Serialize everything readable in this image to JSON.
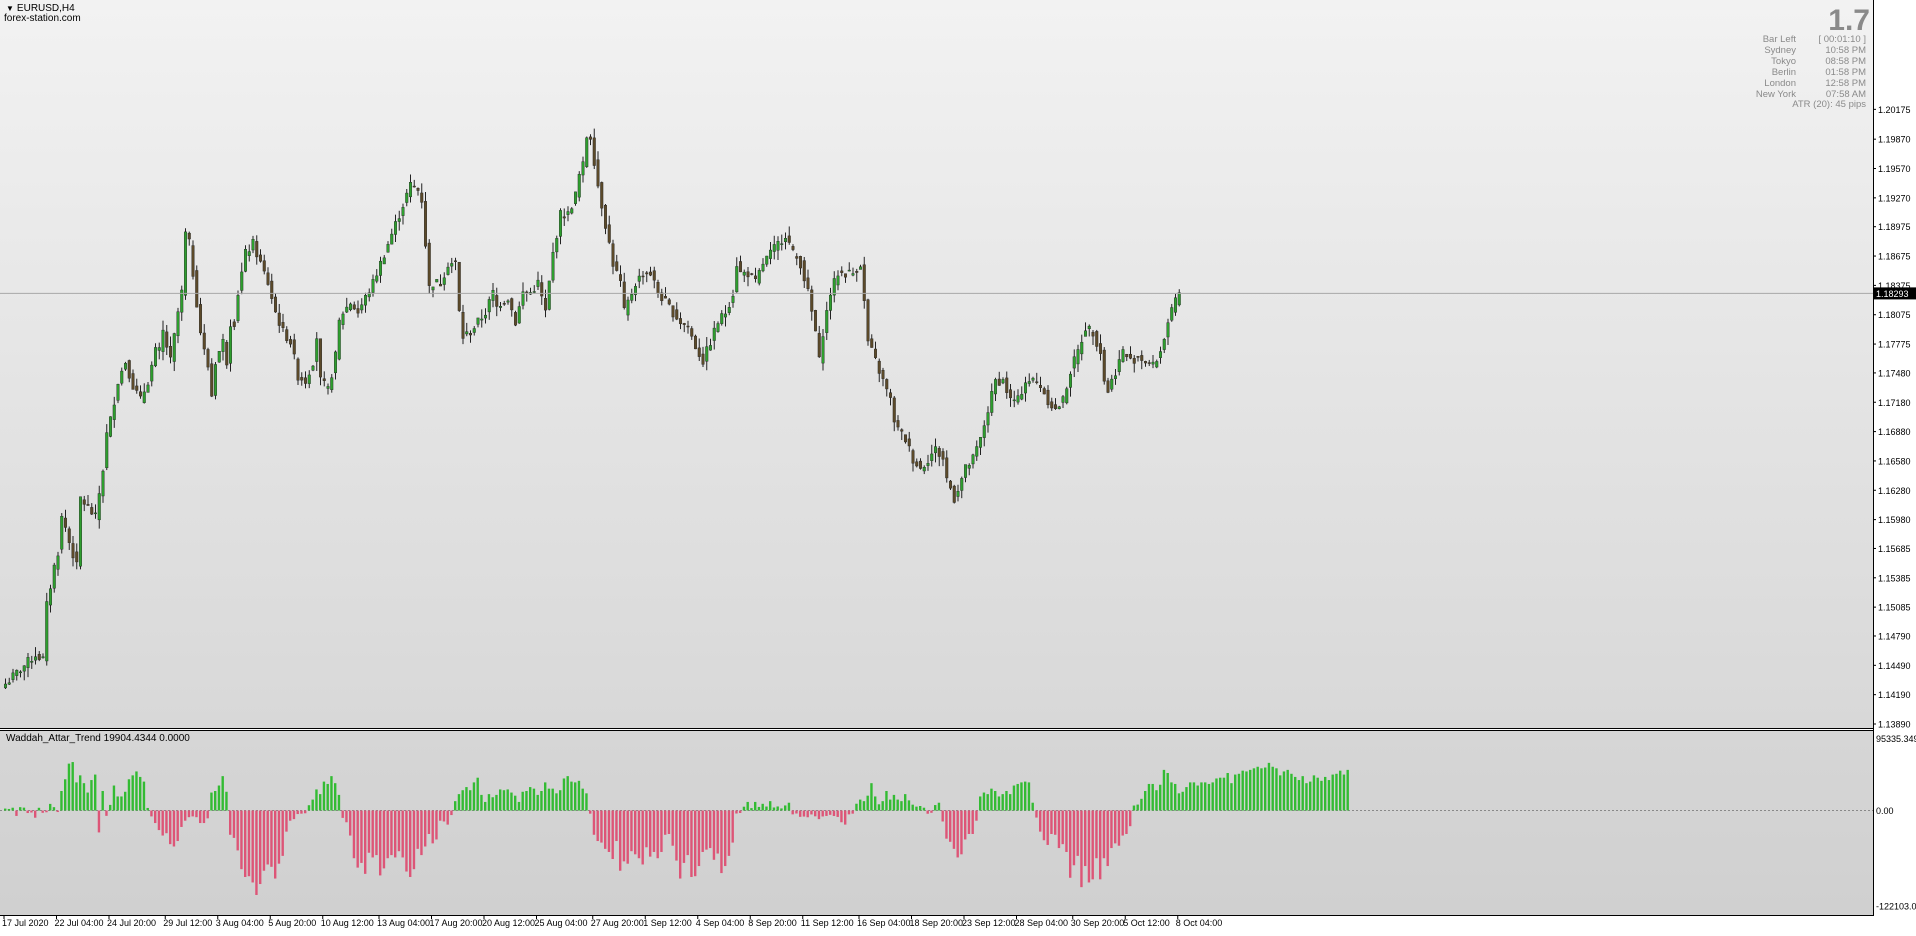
{
  "window": {
    "symbol": "EURUSD,H4",
    "broker": "forex-station.com"
  },
  "info_panel": {
    "spread": "1.7",
    "rows": [
      {
        "name": "Bar Left",
        "value": "[ 00:01:10 ]"
      },
      {
        "name": "Sydney",
        "value": "10:58 PM"
      },
      {
        "name": "Tokyo",
        "value": "08:58 PM"
      },
      {
        "name": "Berlin",
        "value": "01:58 PM"
      },
      {
        "name": "London",
        "value": "12:58 PM"
      },
      {
        "name": "New York",
        "value": "07:58 AM"
      }
    ],
    "atr": "ATR (20): 45 pips"
  },
  "indicator": {
    "label": "Waddah_Attar_Trend 19904.4344 0.0000"
  },
  "colors": {
    "background_top": "#f2f2f2",
    "background_bottom": "#d6d6d6",
    "candle_bull": "#2e9e2e",
    "candle_bear": "#5c4a2a",
    "hist_positive": "#33bb33",
    "hist_negative": "#dd5577",
    "price_line": "#a8a8a8",
    "current_price_box": "#000000"
  },
  "chart_data": [
    {
      "type": "candlestick",
      "symbol": "EURUSD",
      "timeframe": "H4",
      "current_price": "1.18293",
      "y_tick_labels": [
        "1.20175",
        "1.19870",
        "1.19570",
        "1.19270",
        "1.18975",
        "1.18675",
        "1.18375",
        "1.18075",
        "1.17775",
        "1.17480",
        "1.17180",
        "1.16880",
        "1.16580",
        "1.16280",
        "1.15980",
        "1.15685",
        "1.15385",
        "1.15085",
        "1.14790",
        "1.14490",
        "1.14190",
        "1.13890"
      ],
      "ylim": [
        1.1389,
        1.2115
      ],
      "x_tick_labels": [
        "17 Jul 2020",
        "22 Jul 04:00",
        "24 Jul 20:00",
        "29 Jul 12:00",
        "3 Aug 04:00",
        "5 Aug 20:00",
        "10 Aug 12:00",
        "13 Aug 04:00",
        "17 Aug 20:00",
        "20 Aug 12:00",
        "25 Aug 04:00",
        "27 Aug 20:00",
        "1 Sep 12:00",
        "4 Sep 04:00",
        "8 Sep 20:00",
        "11 Sep 12:00",
        "16 Sep 04:00",
        "18 Sep 20:00",
        "23 Sep 12:00",
        "28 Sep 04:00",
        "30 Sep 20:00",
        "5 Oct 12:00",
        "8 Oct 04:00"
      ],
      "close_series_by_bar_index": [
        [
          0,
          1.143
        ],
        [
          4,
          1.1445
        ],
        [
          8,
          1.146
        ],
        [
          10,
          1.1455
        ],
        [
          11,
          1.151
        ],
        [
          13,
          1.155
        ],
        [
          14,
          1.1565
        ],
        [
          15,
          1.16
        ],
        [
          16,
          1.159
        ],
        [
          17,
          1.1575
        ],
        [
          19,
          1.155
        ],
        [
          20,
          1.162
        ],
        [
          22,
          1.161
        ],
        [
          24,
          1.16
        ],
        [
          26,
          1.165
        ],
        [
          27,
          1.1685
        ],
        [
          28,
          1.17
        ],
        [
          29,
          1.172
        ],
        [
          30,
          1.174
        ],
        [
          32,
          1.176
        ],
        [
          34,
          1.1735
        ],
        [
          36,
          1.172
        ],
        [
          38,
          1.174
        ],
        [
          40,
          1.177
        ],
        [
          41,
          1.177
        ],
        [
          42,
          1.179
        ],
        [
          44,
          1.176
        ],
        [
          46,
          1.181
        ],
        [
          47,
          1.183
        ],
        [
          48,
          1.189
        ],
        [
          49,
          1.188
        ],
        [
          50,
          1.185
        ],
        [
          52,
          1.179
        ],
        [
          53,
          1.177
        ],
        [
          54,
          1.1755
        ],
        [
          55,
          1.1725
        ],
        [
          56,
          1.176
        ],
        [
          57,
          1.177
        ],
        [
          58,
          1.178
        ],
        [
          59,
          1.176
        ],
        [
          60,
          1.18
        ],
        [
          61,
          1.18
        ],
        [
          62,
          1.183
        ],
        [
          64,
          1.187
        ],
        [
          66,
          1.188
        ],
        [
          68,
          1.186
        ],
        [
          70,
          1.184
        ],
        [
          71,
          1.1825
        ],
        [
          72,
          1.181
        ],
        [
          74,
          1.179
        ],
        [
          76,
          1.178
        ],
        [
          78,
          1.1745
        ],
        [
          80,
          1.174
        ],
        [
          82,
          1.176
        ],
        [
          83,
          1.1785
        ],
        [
          84,
          1.174
        ],
        [
          86,
          1.173
        ],
        [
          88,
          1.1765
        ],
        [
          89,
          1.18
        ],
        [
          90,
          1.181
        ],
        [
          92,
          1.182
        ],
        [
          94,
          1.181
        ],
        [
          96,
          1.1825
        ],
        [
          98,
          1.184
        ],
        [
          100,
          1.186
        ],
        [
          102,
          1.188
        ],
        [
          104,
          1.19
        ],
        [
          106,
          1.192
        ],
        [
          108,
          1.194
        ],
        [
          110,
          1.1935
        ],
        [
          111,
          1.1925
        ],
        [
          112,
          1.188
        ],
        [
          113,
          1.1835
        ],
        [
          114,
          1.184
        ],
        [
          116,
          1.184
        ],
        [
          118,
          1.186
        ],
        [
          120,
          1.186
        ],
        [
          121,
          1.181
        ],
        [
          122,
          1.1785
        ],
        [
          124,
          1.179
        ],
        [
          126,
          1.18
        ],
        [
          128,
          1.181
        ],
        [
          130,
          1.183
        ],
        [
          131,
          1.1815
        ],
        [
          132,
          1.182
        ],
        [
          134,
          1.1825
        ],
        [
          136,
          1.18
        ],
        [
          138,
          1.183
        ],
        [
          140,
          1.183
        ],
        [
          142,
          1.184
        ],
        [
          144,
          1.181
        ],
        [
          146,
          1.187
        ],
        [
          147,
          1.189
        ],
        [
          148,
          1.191
        ],
        [
          150,
          1.191
        ],
        [
          152,
          1.193
        ],
        [
          153,
          1.195
        ],
        [
          154,
          1.196
        ],
        [
          155,
          1.199
        ],
        [
          156,
          1.199
        ],
        [
          158,
          1.194
        ],
        [
          160,
          1.19
        ],
        [
          162,
          1.186
        ],
        [
          164,
          1.184
        ],
        [
          165,
          1.181
        ],
        [
          166,
          1.182
        ],
        [
          168,
          1.184
        ],
        [
          170,
          1.185
        ],
        [
          172,
          1.185
        ],
        [
          174,
          1.183
        ],
        [
          176,
          1.182
        ],
        [
          178,
          1.181
        ],
        [
          180,
          1.18
        ],
        [
          182,
          1.1795
        ],
        [
          184,
          1.1775
        ],
        [
          186,
          1.176
        ],
        [
          188,
          1.178
        ],
        [
          190,
          1.18
        ],
        [
          192,
          1.181
        ],
        [
          194,
          1.183
        ],
        [
          195,
          1.186
        ],
        [
          196,
          1.185
        ],
        [
          198,
          1.185
        ],
        [
          200,
          1.184
        ],
        [
          202,
          1.186
        ],
        [
          204,
          1.187
        ],
        [
          206,
          1.188
        ],
        [
          208,
          1.189
        ],
        [
          210,
          1.187
        ],
        [
          212,
          1.186
        ],
        [
          214,
          1.183
        ],
        [
          216,
          1.179
        ],
        [
          217,
          1.176
        ],
        [
          218,
          1.179
        ],
        [
          220,
          1.183
        ],
        [
          222,
          1.185
        ],
        [
          224,
          1.185
        ],
        [
          226,
          1.185
        ],
        [
          228,
          1.186
        ],
        [
          229,
          1.182
        ],
        [
          230,
          1.178
        ],
        [
          232,
          1.176
        ],
        [
          234,
          1.174
        ],
        [
          236,
          1.172
        ],
        [
          237,
          1.17
        ],
        [
          238,
          1.169
        ],
        [
          240,
          1.168
        ],
        [
          241,
          1.167
        ],
        [
          242,
          1.166
        ],
        [
          244,
          1.165
        ],
        [
          246,
          1.166
        ],
        [
          248,
          1.167
        ],
        [
          250,
          1.166
        ],
        [
          251,
          1.164
        ],
        [
          252,
          1.163
        ],
        [
          253,
          1.162
        ],
        [
          254,
          1.163
        ],
        [
          256,
          1.165
        ],
        [
          258,
          1.166
        ],
        [
          260,
          1.168
        ],
        [
          262,
          1.171
        ],
        [
          264,
          1.174
        ],
        [
          266,
          1.174
        ],
        [
          268,
          1.172
        ],
        [
          270,
          1.172
        ],
        [
          272,
          1.174
        ],
        [
          274,
          1.174
        ],
        [
          276,
          1.1735
        ],
        [
          278,
          1.172
        ],
        [
          280,
          1.171
        ],
        [
          282,
          1.172
        ],
        [
          284,
          1.175
        ],
        [
          286,
          1.177
        ],
        [
          288,
          1.1795
        ],
        [
          290,
          1.179
        ],
        [
          292,
          1.177
        ],
        [
          293,
          1.174
        ],
        [
          294,
          1.173
        ],
        [
          296,
          1.175
        ],
        [
          298,
          1.177
        ],
        [
          300,
          1.176
        ],
        [
          302,
          1.1765
        ],
        [
          304,
          1.176
        ],
        [
          306,
          1.1755
        ],
        [
          308,
          1.177
        ],
        [
          310,
          1.18
        ],
        [
          312,
          1.182
        ],
        [
          313,
          1.1829
        ]
      ]
    },
    {
      "type": "histogram",
      "name": "Waddah_Attar_Trend",
      "y_tick_labels": [
        "95335.349",
        "0.00",
        "-122103.0"
      ],
      "ylim": [
        -122103.0,
        95335.349
      ],
      "bar_values": [
        2500,
        2000,
        3600,
        -6900,
        4300,
        3700,
        -3200,
        -2500,
        -9200,
        3500,
        -2900,
        -2200,
        8500,
        4300,
        -1900,
        25000,
        40000,
        60000,
        62000,
        36000,
        45000,
        35000,
        23000,
        39000,
        46000,
        -28000,
        25000,
        -6800,
        7200,
        32000,
        18000,
        18000,
        24000,
        40000,
        45000,
        50000,
        43000,
        37000,
        3300,
        -7500,
        -16000,
        -25000,
        -32000,
        -29000,
        -43000,
        -46000,
        -39000,
        -21000,
        -13000,
        -8500,
        -7500,
        -8500,
        -16000,
        -16000,
        -10000,
        23000,
        25000,
        32000,
        44000,
        24000,
        -31000,
        -35000,
        -51000,
        -75000,
        -85000,
        -84000,
        -92000,
        -108000,
        -94000,
        -77000,
        -69000,
        -72000,
        -87000,
        -68000,
        -58000,
        -27000,
        -13000,
        -11000,
        -4500,
        -4000,
        -3500,
        6800,
        14000,
        27000,
        21000,
        37000,
        34000,
        44000,
        35000,
        20000,
        -9400,
        -15000,
        -32000,
        -61000,
        -73000,
        -67000,
        -81000,
        -54000,
        -60000,
        -57000,
        -83000,
        -74000,
        -61000,
        -57000,
        -60000,
        -52000,
        -60000,
        -78000,
        -85000,
        -75000,
        -49000,
        -57000,
        -46000,
        -30000,
        -42000,
        -37000,
        -13000,
        -14000,
        -18000,
        -5800,
        12000,
        21000,
        26000,
        30000,
        26000,
        36000,
        42000,
        20000,
        11000,
        21000,
        17000,
        20000,
        27000,
        26000,
        27000,
        23000,
        19000,
        11000,
        24000,
        25000,
        30000,
        28000,
        20000,
        25000,
        36000,
        28000,
        28000,
        22000,
        26000,
        41000,
        44000,
        37000,
        36000,
        38000,
        28000,
        22000,
        -4000,
        -31000,
        -39000,
        -41000,
        -49000,
        -53000,
        -62000,
        -39000,
        -77000,
        -65000,
        -68000,
        -52000,
        -56000,
        -61000,
        -69000,
        -47000,
        -59000,
        -53000,
        -61000,
        -53000,
        -31000,
        -30000,
        -45000,
        -64000,
        -87000,
        -67000,
        -57000,
        -85000,
        -84000,
        -71000,
        -53000,
        -50000,
        -48000,
        -63000,
        -55000,
        -80000,
        -71000,
        -58000,
        -41000,
        -3800,
        -3100,
        4900,
        11000,
        3100,
        11000,
        4600,
        8600,
        5100,
        12000,
        3900,
        5200,
        2700,
        6500,
        10000,
        -4900,
        -3800,
        -8100,
        -7700,
        -8600,
        -5000,
        -7400,
        -11000,
        -7600,
        -6900,
        -5500,
        -7000,
        -8200,
        -15000,
        -18000,
        -4900,
        -4000,
        8700,
        14000,
        12000,
        19000,
        35000,
        18000,
        8000,
        12000,
        25000,
        14000,
        20000,
        14000,
        12000,
        21000,
        13000,
        7500,
        5000,
        5800,
        3600,
        -4100,
        -2900,
        7000,
        10000,
        -14000,
        -36000,
        -40000,
        -49000,
        -60000,
        -56000,
        -37000,
        -30000,
        -30000,
        -13000,
        18000,
        23000,
        21000,
        28000,
        25000,
        18000,
        21000,
        25000,
        21000,
        32000,
        34000,
        36000,
        37000,
        36000,
        10000,
        -9000,
        -27000,
        -38000,
        -44000,
        -30000,
        -31000,
        -48000,
        -43000,
        -53000,
        -86000,
        -70000,
        -58000,
        -98000,
        -71000,
        -92000,
        -88000,
        -61000,
        -88000,
        -61000,
        -71000,
        -48000,
        -42000,
        -45000,
        -32000,
        -30000,
        -20000,
        6400,
        7600,
        15000,
        25000,
        34000,
        34000,
        26000,
        33000,
        52000,
        48000,
        36000,
        34000,
        22000,
        24000,
        30000,
        36000,
        36000,
        32000,
        36000,
        36000,
        34000,
        36000,
        41000,
        42000,
        42000,
        48000,
        35000,
        46000,
        47000,
        51000,
        50000,
        52000,
        54000,
        56000,
        54000,
        55000,
        61000,
        56000,
        54000,
        45000,
        50000,
        52000,
        47000,
        43000,
        39000,
        44000,
        35000,
        37000,
        45000,
        42000,
        38000,
        43000,
        39000,
        46000,
        47000,
        51000,
        46000,
        52000
      ]
    }
  ]
}
